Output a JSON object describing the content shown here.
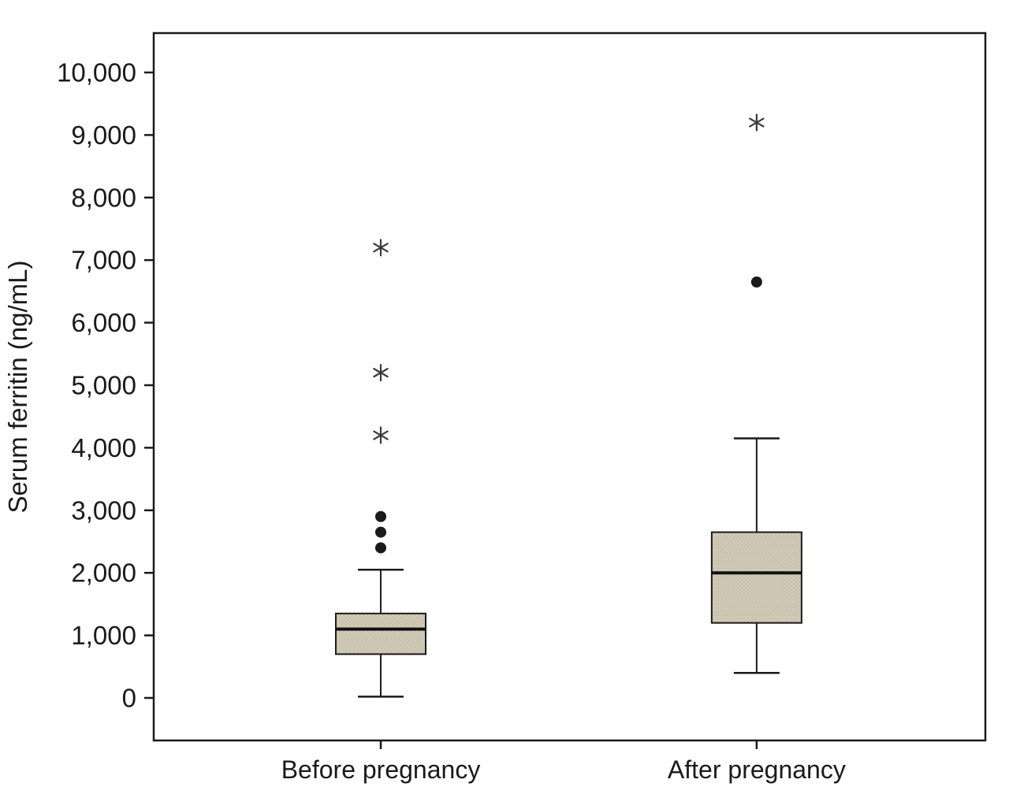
{
  "chart_data": {
    "type": "boxplot",
    "title": "",
    "ylabel": "Serum ferritin (ng/mL)",
    "xlabel": "",
    "ylim": [
      0,
      10000
    ],
    "yticks": [
      {
        "value": 0,
        "label": "0"
      },
      {
        "value": 1000,
        "label": "1,000"
      },
      {
        "value": 2000,
        "label": "2,000"
      },
      {
        "value": 3000,
        "label": "3,000"
      },
      {
        "value": 4000,
        "label": "4,000"
      },
      {
        "value": 5000,
        "label": "5,000"
      },
      {
        "value": 6000,
        "label": "6,000"
      },
      {
        "value": 7000,
        "label": "7,000"
      },
      {
        "value": 8000,
        "label": "8,000"
      },
      {
        "value": 9000,
        "label": "9,000"
      },
      {
        "value": 10000,
        "label": "10,000"
      }
    ],
    "categories": [
      "Before pregnancy",
      "After pregnancy"
    ],
    "series": [
      {
        "category": "Before pregnancy",
        "whisker_low": 20,
        "q1": 700,
        "median": 1100,
        "q3": 1350,
        "whisker_high": 2050,
        "outliers": [
          2400,
          2650,
          2900
        ],
        "extremes": [
          4200,
          5200,
          7200
        ]
      },
      {
        "category": "After pregnancy",
        "whisker_low": 400,
        "q1": 1200,
        "median": 2000,
        "q3": 2650,
        "whisker_high": 4150,
        "outliers": [
          6650
        ],
        "extremes": [
          9200
        ]
      }
    ],
    "legend": "none",
    "grid": false,
    "colors": {
      "box_fill": "#d1cab7",
      "box_stroke": "#1a1a1a",
      "median_stroke": "#111111",
      "whisker_stroke": "#1a1a1a",
      "outlier_fill": "#1a1a1a",
      "extreme_stroke": "#3a3a36",
      "frame_stroke": "#1a1a1a",
      "background": "#ffffff"
    }
  }
}
